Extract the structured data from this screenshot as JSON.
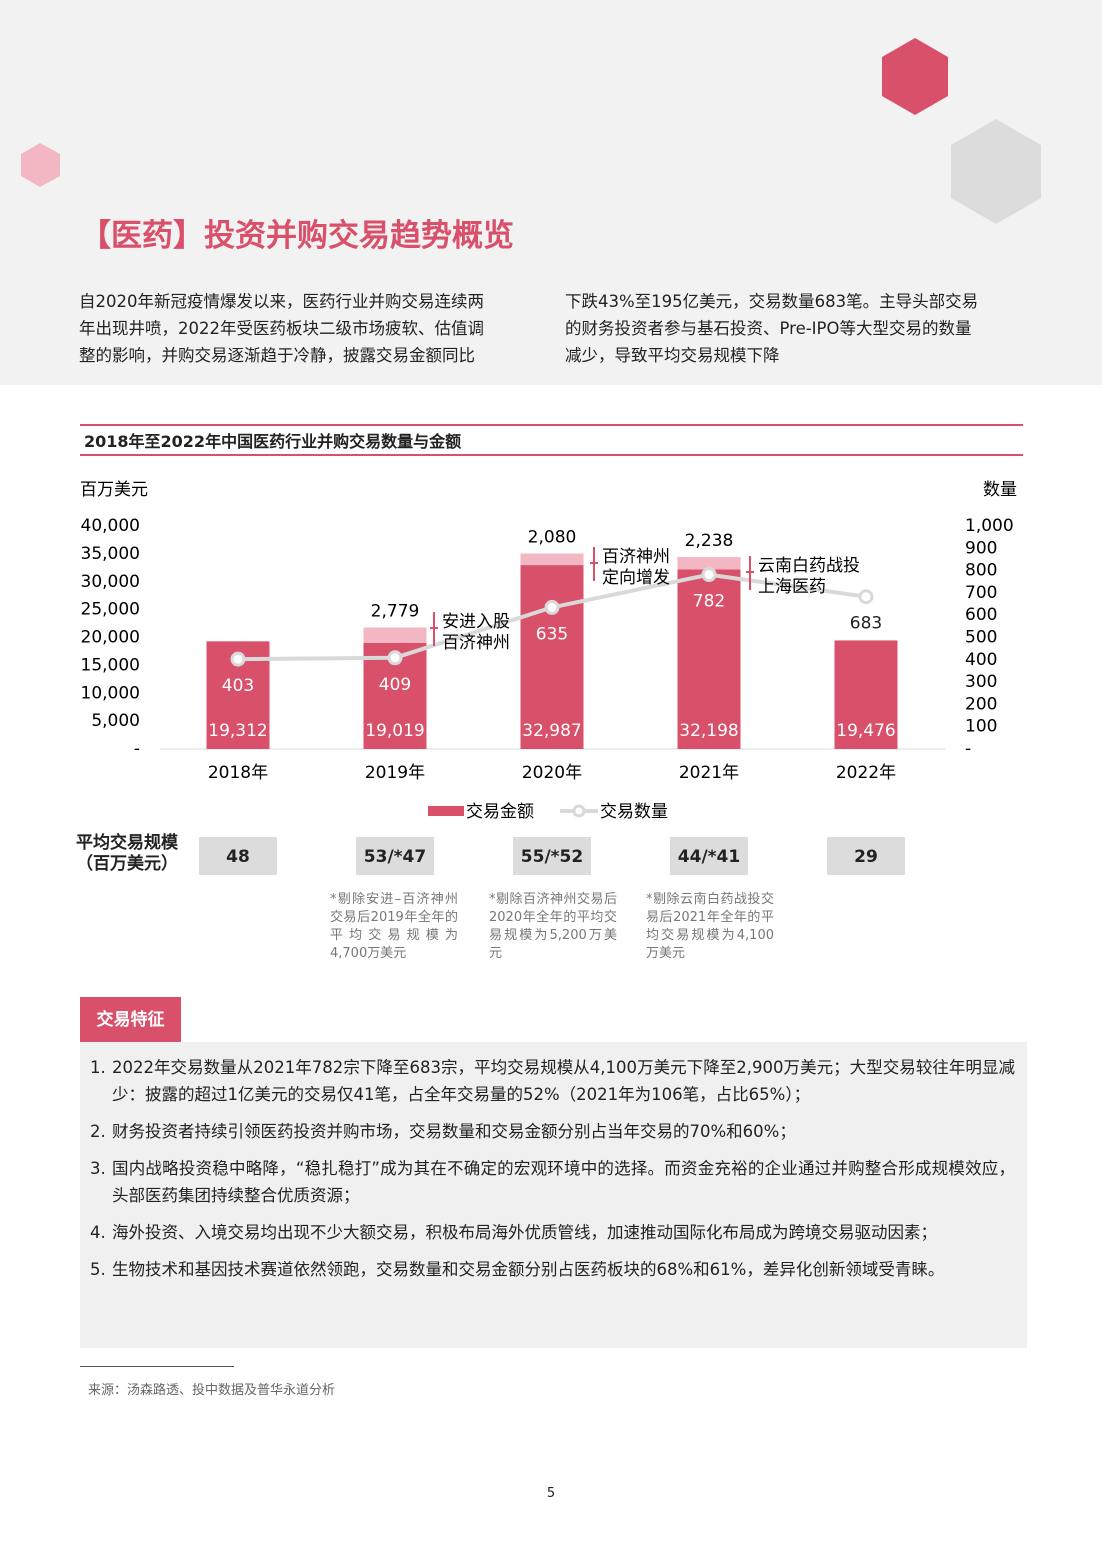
{
  "title": "【医药】投资并购交易趋势概览",
  "intro": {
    "left": [
      "自2020年新冠疫情爆发以来，医药行业并购交易连续两",
      "年出现井喷，2022年受医药板块二级市场疲软、估值调",
      "整的影响，并购交易逐渐趋于冷静，披露交易金额同比"
    ],
    "right": [
      "下跌43%至195亿美元，交易数量683笔。主导头部交易",
      "的财务投资者参与基石投资、Pre-IPO等大型交易的数量",
      "减少，导致平均交易规模下降"
    ]
  },
  "chart_data": {
    "type": "bar",
    "title": "2018年至2022年中国医药行业并购交易数量与金额",
    "y_label": "百万美元",
    "y2_label": "数量",
    "categories": [
      "2018年",
      "2019年",
      "2020年",
      "2021年",
      "2022年"
    ],
    "series": [
      {
        "name": "交易金额",
        "type": "bar",
        "color": "#d9506b",
        "values": [
          19312,
          19019,
          32987,
          32198,
          19476
        ],
        "value_labels": [
          "19,312",
          "19,019",
          "32,987",
          "32,198",
          "19,476"
        ]
      },
      {
        "type": "bar",
        "color": "#f3b7c4",
        "values": [
          null,
          2779,
          2080,
          2238,
          null
        ],
        "value_labels": [
          null,
          "2,779",
          "2,080",
          "2,238",
          null
        ]
      },
      {
        "name": "交易数量",
        "type": "line",
        "axis": "y2",
        "color": "#d9d9d9",
        "values": [
          403,
          409,
          635,
          782,
          683
        ]
      }
    ],
    "ylim": [
      0,
      40000
    ],
    "yticks": [
      {
        "value": 0,
        "label": "-"
      },
      {
        "value": 5000,
        "label": "5,000"
      },
      {
        "value": 10000,
        "label": "10,000"
      },
      {
        "value": 15000,
        "label": "15,000"
      },
      {
        "value": 20000,
        "label": "20,000"
      },
      {
        "value": 25000,
        "label": "25,000"
      },
      {
        "value": 30000,
        "label": "30,000"
      },
      {
        "value": 35000,
        "label": "35,000"
      },
      {
        "value": 40000,
        "label": "40,000"
      }
    ],
    "y2lim": [
      0,
      1000
    ],
    "y2ticks": [
      {
        "value": 0,
        "label": "-"
      },
      100,
      200,
      300,
      400,
      500,
      600,
      700,
      800,
      900,
      {
        "value": 1000,
        "label": "1,000"
      }
    ],
    "annotations": [
      [
        "安进入股",
        "百济神州"
      ],
      [
        "百济神州",
        "定向增发"
      ],
      [
        "云南白药战投",
        "上海医药"
      ]
    ]
  },
  "avg_size": {
    "label": [
      "平均交易规模",
      "（百万美元）"
    ],
    "values": [
      "48",
      "53/*47",
      "55/*52",
      "44/*41",
      "29"
    ],
    "notes": [
      "*剔除安进–百济神州交易后2019年全年的平均交易规模为4,700万美元",
      "*剔除百济神州交易后2020年全年的平均交易规模为5,200万美元",
      "*剔除云南白药战投交易后2021年全年的平均交易规模为4,100万美元"
    ]
  },
  "features": {
    "heading": "交易特征",
    "items": [
      {
        "number": "1.",
        "text": "2022年交易数量从2021年782宗下降至683宗，平均交易规模从4,100万美元下降至2,900万美元；大型交易较往年明显减少：披露的超过1亿美元的交易仅41笔，占全年交易量的52%（2021年为106笔，占比65%）；"
      },
      {
        "number": "2.",
        "text": "财务投资者持续引领医药投资并购市场，交易数量和交易金额分别占当年交易的70%和60%；"
      },
      {
        "number": "3.",
        "text": "国内战略投资稳中略降，“稳扎稳打”成为其在不确定的宏观环境中的选择。而资金充裕的企业通过并购整合形成规模效应，头部医药集团持续整合优质资源；"
      },
      {
        "number": "4.",
        "text": "海外投资、入境交易均出现不少大额交易，积极布局海外优质管线，加速推动国际化布局成为跨境交易驱动因素；"
      },
      {
        "number": "5.",
        "text": "生物技术和基因技术赛道依然领跑，交易数量和交易金额分别占医药板块的68%和61%，差异化创新领域受青睐。"
      }
    ]
  },
  "source": "来源：汤森路透、投中数据及普华永道分析",
  "page_number": "5"
}
